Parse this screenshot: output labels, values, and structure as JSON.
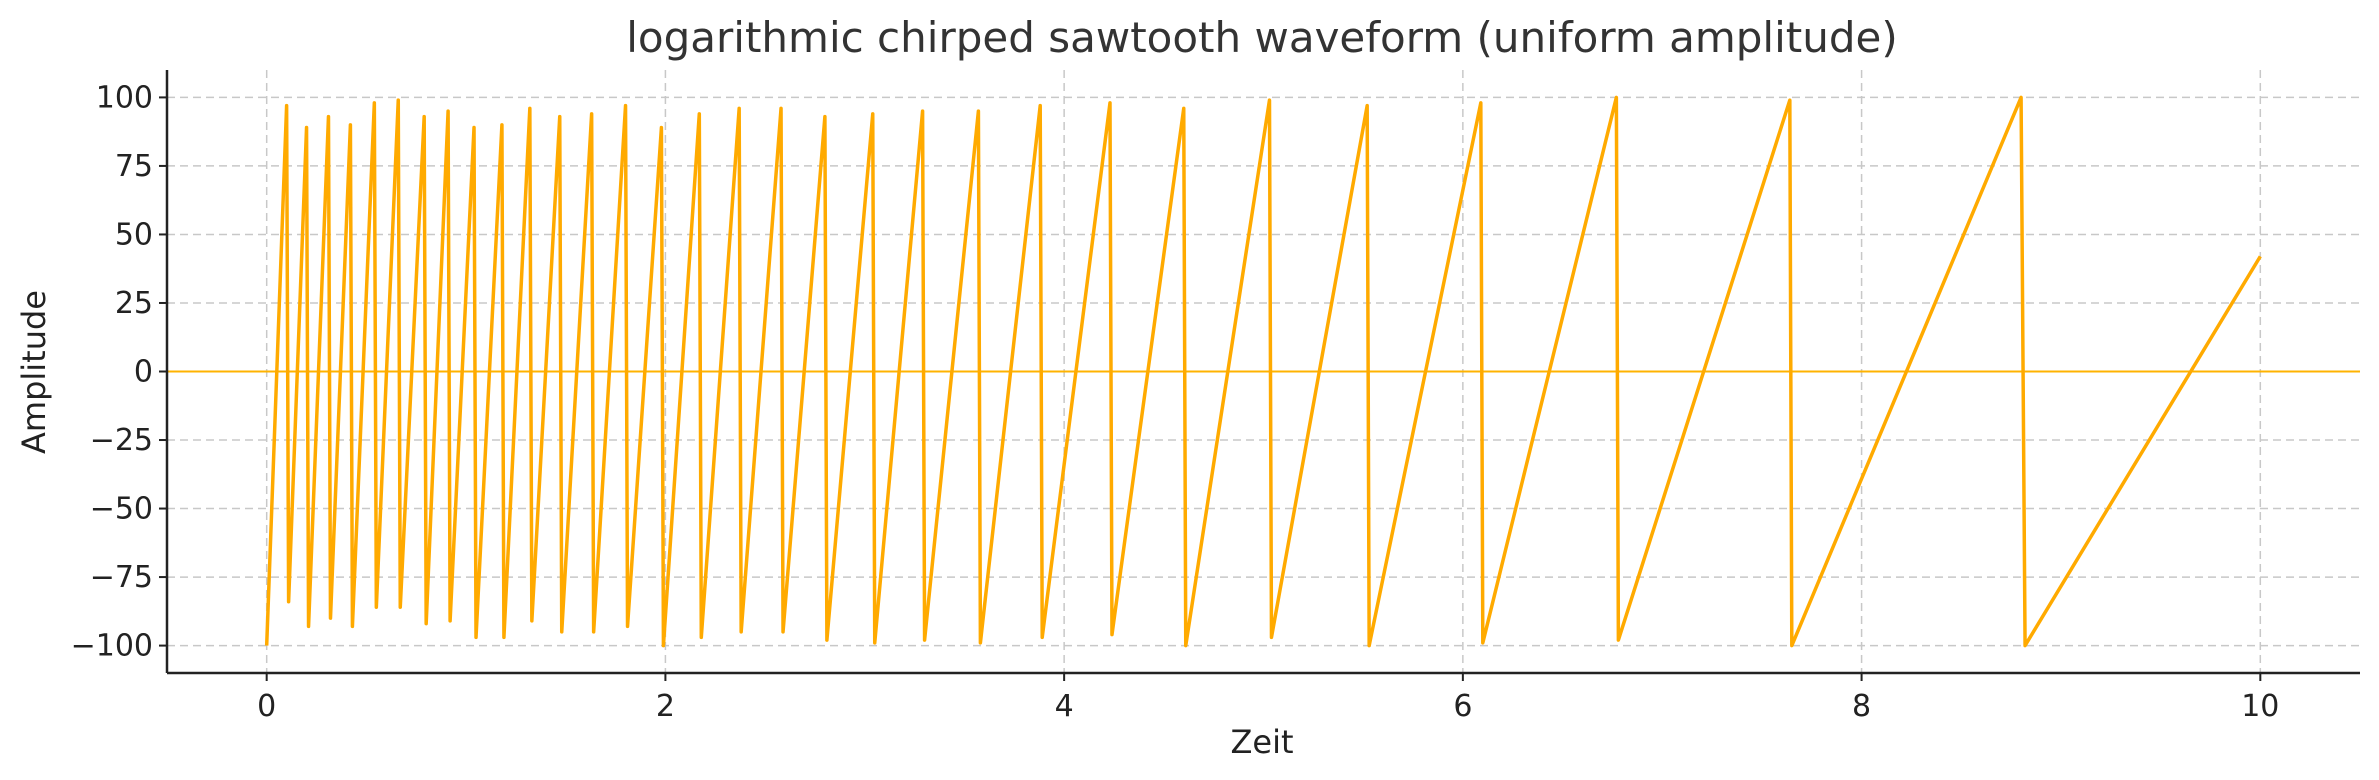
{
  "chart_data": {
    "type": "line",
    "title": "logarithmic chirped sawtooth waveform (uniform amplitude)",
    "xlabel": "Zeit",
    "ylabel": "Amplitude",
    "xlim": [
      -0.5,
      10.5
    ],
    "ylim": [
      -110,
      110
    ],
    "xticks": [
      0,
      2,
      4,
      6,
      8,
      10
    ],
    "xtick_labels": [
      "0",
      "2",
      "4",
      "6",
      "8",
      "10"
    ],
    "yticks": [
      100,
      75,
      50,
      25,
      0,
      -25,
      -50,
      -75,
      -100
    ],
    "ytick_labels": [
      "100",
      "75",
      "50",
      "25",
      "0",
      "−25",
      "−50",
      "−75",
      "−100"
    ],
    "grid": true,
    "reference_line": {
      "y": 0,
      "color": "#FFB300"
    },
    "series": [
      {
        "color": "#FFAA00",
        "x": [
          0,
          0.1,
          0.11,
          0.2,
          0.21,
          0.31,
          0.32,
          0.42,
          0.43,
          0.54,
          0.55,
          0.66,
          0.67,
          0.79,
          0.8,
          0.91,
          0.92,
          1.04,
          1.05,
          1.18,
          1.19,
          1.32,
          1.33,
          1.47,
          1.48,
          1.63,
          1.64,
          1.8,
          1.81,
          1.98,
          1.99,
          2.17,
          2.18,
          2.37,
          2.38,
          2.58,
          2.59,
          2.8,
          2.81,
          3.04,
          3.05,
          3.29,
          3.3,
          3.57,
          3.58,
          3.88,
          3.89,
          4.23,
          4.24,
          4.6,
          4.61,
          5.03,
          5.04,
          5.52,
          5.53,
          6.09,
          6.1,
          6.77,
          6.78,
          7.64,
          7.65,
          8.8,
          8.82,
          10.0
        ],
        "y": [
          -100,
          97,
          -84,
          89,
          -93,
          93,
          -90,
          90,
          -93,
          98,
          -86,
          99,
          -86,
          93,
          -92,
          95,
          -91,
          89,
          -97,
          90,
          -97,
          96,
          -91,
          93,
          -95,
          94,
          -95,
          97,
          -93,
          89,
          -100,
          94,
          -97,
          96,
          -95,
          96,
          -95,
          93,
          -98,
          94,
          -99,
          95,
          -98,
          95,
          -99,
          97,
          -97,
          98,
          -96,
          96,
          -100,
          99,
          -97,
          97,
          -100,
          98,
          -99,
          100,
          -98,
          99,
          -100,
          100,
          -100,
          42
        ]
      }
    ]
  }
}
